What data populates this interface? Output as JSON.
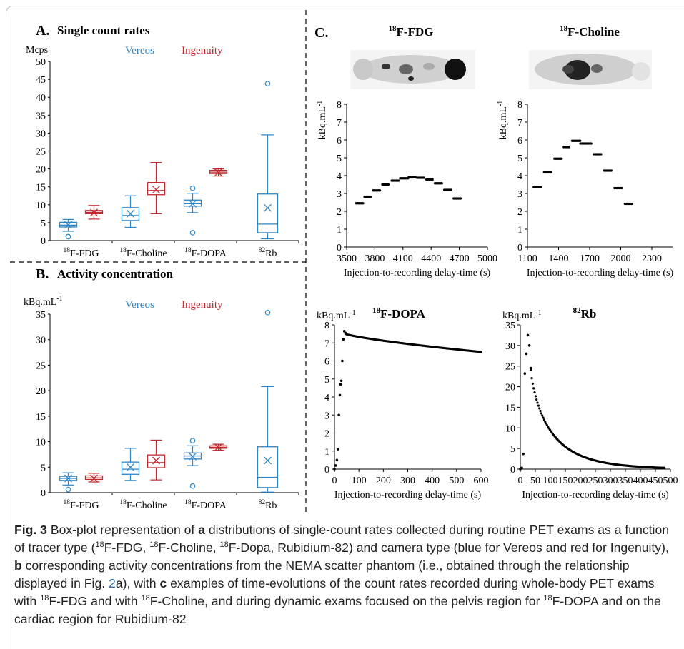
{
  "panels": {
    "A": {
      "letter": "A.",
      "title": "Single count rates",
      "ylabel": "Mcps"
    },
    "B": {
      "letter": "B.",
      "title": "Activity concentration",
      "ylabel": "kBq.mL-1"
    },
    "C": {
      "letter": "C."
    }
  },
  "legend": {
    "vereos": "Vereos",
    "ingenuity": "Ingenuity"
  },
  "colors": {
    "vereos": "#2f86c6",
    "ingenuity": "#c0282d"
  },
  "tracers": [
    "18F-FDG",
    "18F-Choline",
    "18F-DOPA",
    "82Rb"
  ],
  "chart_data": [
    {
      "type": "box",
      "panel": "A",
      "title": "Single count rates",
      "ylabel": "Mcps",
      "ylim": [
        0,
        50
      ],
      "yticks": [
        0,
        5,
        10,
        15,
        20,
        25,
        30,
        35,
        40,
        45,
        50
      ],
      "categories": [
        "18F-FDG",
        "18F-Choline",
        "18F-DOPA",
        "82Rb"
      ],
      "series": [
        {
          "name": "Vereos",
          "boxes": [
            {
              "min": 2.6,
              "q1": 3.8,
              "median": 4.3,
              "q3": 5.1,
              "max": 5.9,
              "mean": 4.4,
              "outliers": [
                1.1
              ]
            },
            {
              "min": 3.7,
              "q1": 5.6,
              "median": 7.0,
              "q3": 9.2,
              "max": 12.5,
              "mean": 7.5,
              "outliers": []
            },
            {
              "min": 7.8,
              "q1": 9.6,
              "median": 10.3,
              "q3": 11.3,
              "max": 13.2,
              "mean": 10.3,
              "outliers": [
                14.6,
                2.2
              ]
            },
            {
              "min": 0.5,
              "q1": 2.2,
              "median": 4.6,
              "q3": 13.0,
              "max": 29.5,
              "mean": 9.1,
              "outliers": [
                43.8
              ]
            }
          ]
        },
        {
          "name": "Ingenuity",
          "boxes": [
            {
              "min": 6.0,
              "q1": 7.5,
              "median": 7.9,
              "q3": 8.4,
              "max": 9.8,
              "mean": 7.8,
              "outliers": []
            },
            {
              "min": 7.5,
              "q1": 12.8,
              "median": 14.0,
              "q3": 16.2,
              "max": 21.8,
              "mean": 14.2,
              "outliers": []
            },
            {
              "min": 18.0,
              "q1": 18.7,
              "median": 19.1,
              "q3": 19.6,
              "max": 20.0,
              "mean": 19.0,
              "outliers": []
            },
            null
          ]
        }
      ]
    },
    {
      "type": "box",
      "panel": "B",
      "title": "Activity concentration",
      "ylabel": "kBq.mL-1",
      "ylim": [
        0,
        35
      ],
      "yticks": [
        0,
        5,
        10,
        15,
        20,
        25,
        30,
        35
      ],
      "categories": [
        "18F-FDG",
        "18F-Choline",
        "18F-DOPA",
        "82Rb"
      ],
      "series": [
        {
          "name": "Vereos",
          "boxes": [
            {
              "min": 1.5,
              "q1": 2.4,
              "median": 2.8,
              "q3": 3.2,
              "max": 3.9,
              "mean": 2.8,
              "outliers": [
                0.6
              ]
            },
            {
              "min": 2.4,
              "q1": 3.6,
              "median": 4.6,
              "q3": 6.0,
              "max": 8.7,
              "mean": 5.0,
              "outliers": []
            },
            {
              "min": 5.3,
              "q1": 6.6,
              "median": 7.2,
              "q3": 7.8,
              "max": 9.2,
              "mean": 7.1,
              "outliers": [
                10.2,
                1.3
              ]
            },
            {
              "min": 0.1,
              "q1": 1.0,
              "median": 3.0,
              "q3": 9.0,
              "max": 20.8,
              "mean": 6.3,
              "outliers": [
                35.3
              ]
            }
          ]
        },
        {
          "name": "Ingenuity",
          "boxes": [
            {
              "min": 2.1,
              "q1": 2.6,
              "median": 2.9,
              "q3": 3.3,
              "max": 3.8,
              "mean": 2.8,
              "outliers": []
            },
            {
              "min": 2.5,
              "q1": 4.9,
              "median": 5.9,
              "q3": 7.4,
              "max": 10.3,
              "mean": 6.3,
              "outliers": []
            },
            {
              "min": 8.3,
              "q1": 8.7,
              "median": 8.9,
              "q3": 9.2,
              "max": 9.5,
              "mean": 8.9,
              "outliers": []
            },
            null
          ]
        }
      ]
    },
    {
      "type": "scatter",
      "panel": "C1",
      "title": "18F-FDG",
      "xlabel": "Injection-to-recording delay-time (s)",
      "ylabel": "kBq.mL-1",
      "xlim": [
        3500,
        5000
      ],
      "ylim": [
        0,
        8
      ],
      "xticks": [
        3500,
        3800,
        4100,
        4400,
        4700,
        5000
      ],
      "yticks": [
        0,
        1,
        2,
        3,
        4,
        5,
        6,
        7,
        8
      ],
      "segments": [
        [
          3600,
          3680,
          2.45
        ],
        [
          3690,
          3760,
          2.82
        ],
        [
          3780,
          3860,
          3.17
        ],
        [
          3880,
          3950,
          3.5
        ],
        [
          3980,
          4060,
          3.72
        ],
        [
          4070,
          4160,
          3.85
        ],
        [
          4160,
          4240,
          3.9
        ],
        [
          4250,
          4330,
          3.88
        ],
        [
          4350,
          4420,
          3.78
        ],
        [
          4440,
          4520,
          3.57
        ],
        [
          4540,
          4620,
          3.2
        ],
        [
          4640,
          4720,
          2.72
        ]
      ]
    },
    {
      "type": "scatter",
      "panel": "C2",
      "title": "18F-Choline",
      "xlabel": "Injection-to-recording delay-time (s)",
      "ylabel": "kBq.mL-1",
      "xlim": [
        1100,
        2500
      ],
      "ylim": [
        0,
        8
      ],
      "xticks": [
        1100,
        1400,
        1700,
        2000,
        2300
      ],
      "yticks": [
        0,
        1,
        2,
        3,
        4,
        5,
        6,
        7,
        8
      ],
      "segments": [
        [
          1160,
          1230,
          3.35
        ],
        [
          1260,
          1330,
          4.18
        ],
        [
          1360,
          1430,
          4.95
        ],
        [
          1450,
          1510,
          5.6
        ],
        [
          1530,
          1610,
          5.95
        ],
        [
          1610,
          1720,
          5.8
        ],
        [
          1740,
          1810,
          5.2
        ],
        [
          1840,
          1910,
          4.28
        ],
        [
          1940,
          2010,
          3.3
        ],
        [
          2040,
          2110,
          2.42
        ]
      ]
    },
    {
      "type": "scatter",
      "panel": "C3",
      "title": "18F-DOPA",
      "xlabel": "Injection-to-recording delay-time (s)",
      "ylabel": "kBq.mL-1",
      "xlim": [
        0,
        600
      ],
      "ylim": [
        0,
        8
      ],
      "xticks": [
        0,
        100,
        200,
        300,
        400,
        500,
        600
      ],
      "yticks": [
        0,
        1,
        2,
        3,
        4,
        5,
        6,
        7,
        8
      ],
      "rise": [
        [
          0,
          0.0
        ],
        [
          5,
          0.2
        ],
        [
          10,
          0.5
        ],
        [
          15,
          1.1
        ],
        [
          18,
          3.0
        ],
        [
          22,
          4.1
        ],
        [
          25,
          4.7
        ],
        [
          28,
          4.9
        ],
        [
          32,
          6.0
        ],
        [
          36,
          7.2
        ],
        [
          40,
          7.65
        ],
        [
          45,
          7.55
        ]
      ],
      "decay": {
        "start": 45,
        "end": 600,
        "y_start": 7.5,
        "y_end": 6.5
      }
    },
    {
      "type": "scatter",
      "panel": "C4",
      "title": "82Rb",
      "xlabel": "Injection-to-recording delay-time (s)",
      "ylabel": "kBq.mL-1",
      "xlim": [
        0,
        500
      ],
      "ylim": [
        0,
        35
      ],
      "xticks": [
        0,
        50,
        100,
        150,
        200,
        250,
        300,
        350,
        400,
        450,
        500
      ],
      "yticks": [
        0,
        5,
        10,
        15,
        20,
        25,
        30,
        35
      ],
      "rise": [
        [
          0,
          0.0
        ],
        [
          5,
          0.3
        ],
        [
          10,
          3.7
        ],
        [
          15,
          23.2
        ],
        [
          20,
          28.0
        ],
        [
          25,
          32.5
        ],
        [
          30,
          30.0
        ],
        [
          35,
          24.5
        ]
      ],
      "decay": {
        "start": 35,
        "end": 480,
        "y_start": 24.0,
        "y_end": 0.3
      }
    }
  ],
  "caption": {
    "label": "Fig. 3",
    "parts": [
      " Box-plot representation of ",
      "a",
      " distributions of single-count rates collected during routine PET exams as a function of tracer type (",
      "18",
      "F-FDG, ",
      "18",
      "F-Choline, ",
      "18",
      "F-Dopa, Rubidium-82) and camera type (blue for Vereos and red for Ingenuity), ",
      "b",
      " corresponding activity concentrations from the NEMA scatter phantom (i.e., obtained through the relationship displayed in Fig. ",
      "2",
      "a), with ",
      "c",
      " examples of time-evolutions of the count rates recorded during whole-body PET exams with ",
      "18",
      "F-FDG and with ",
      "18",
      "F-Choline, and during dynamic exams focused on the pelvis region for ",
      "18",
      "F-DOPA and on the cardiac region for Rubidium-82"
    ]
  }
}
